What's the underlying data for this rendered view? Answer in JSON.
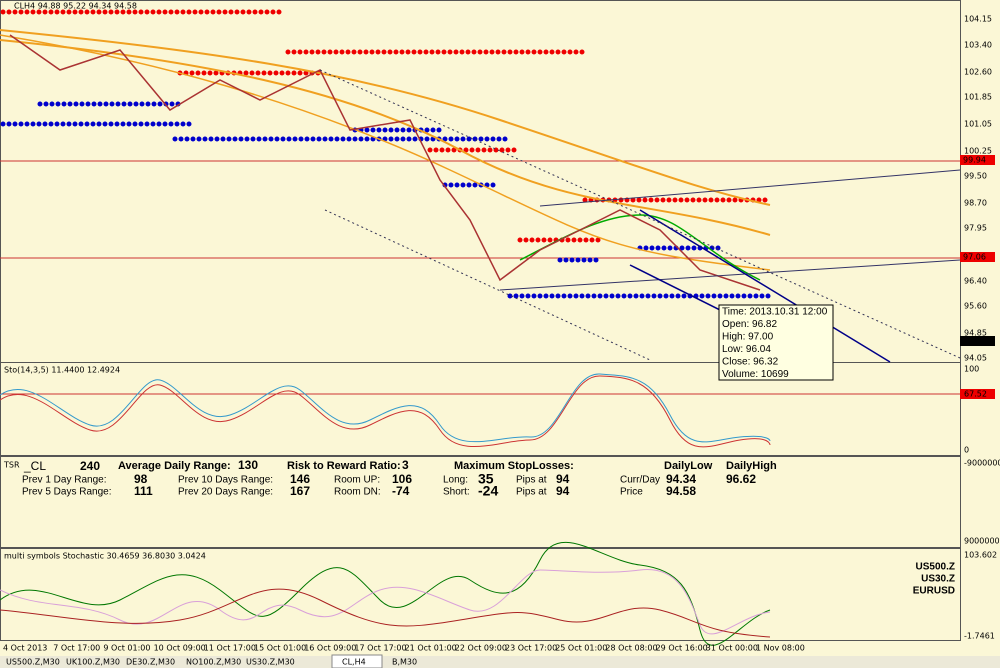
{
  "window": {
    "title": "CLH4  94.88 95.22 94.34 94.58"
  },
  "price_axis": {
    "labels": [
      "104.15",
      "103.40",
      "102.60",
      "101.85",
      "101.05",
      "100.25",
      "99.50",
      "98.70",
      "97.95",
      "96.40",
      "95.60",
      "94.85",
      "94.05"
    ],
    "markers": [
      "99.94",
      "97.06",
      "94.58"
    ]
  },
  "tooltip": [
    "Time: 2013.10.31 12:00",
    "Open: 96.82",
    "High: 97.00",
    "Low:  96.04",
    "Close: 96.32",
    "Volume: 10699"
  ],
  "stochastic": {
    "title": "Sto(14,3,5) 11.4400 12.4924",
    "axis": [
      "100",
      "67.52",
      "0"
    ]
  },
  "tsr": {
    "title": "TSR",
    "symbol": "_CL",
    "period": "240",
    "adr_label": "Average Daily Range:",
    "adr": "130",
    "rr_label": "Risk to Reward Ratio:",
    "rr": "3",
    "msl_label": "Maximum StopLosses:",
    "daily_low": "DailyLow",
    "daily_high": "DailyHigh",
    "row1": [
      "Prev 1 Day Range:",
      "98",
      "Prev 10 Days Range:",
      "146",
      "Room UP:",
      "106",
      "Long:",
      "35",
      "Pips at",
      "94",
      "Curr/Day",
      "94.34",
      "96.62"
    ],
    "row2": [
      "Prev 5 Days Range:",
      "111",
      "Prev 20 Days Range:",
      "167",
      "Room DN:",
      "-74",
      "Short:",
      "-24",
      "Pips at",
      "94",
      "Price",
      "94.58"
    ],
    "axis": [
      "-9000000",
      "9000000"
    ]
  },
  "multi": {
    "title": "multi symbols Stochastic 30.4659 36.8030 3.0424",
    "legend": [
      "US500.Z",
      "US30.Z",
      "EURUSD"
    ],
    "axis": [
      "103.602",
      "-1.7461"
    ]
  },
  "time_axis": [
    "4 Oct 2013",
    "7 Oct 17:00",
    "9 Oct 01:00",
    "10 Oct 09:00",
    "11 Oct 17:00",
    "15 Oct 01:00",
    "16 Oct 09:00",
    "17 Oct 17:00",
    "21 Oct 01:00",
    "22 Oct 09:00",
    "23 Oct 17:00",
    "25 Oct 01:00",
    "28 Oct 08:00",
    "29 Oct 16:00",
    "31 Oct 00:00",
    "1 Nov 08:00"
  ],
  "tabs": [
    "US500.Z,M30",
    "UK100.Z,M30",
    "DE30.Z,M30",
    "NO100.Z,M30",
    "US30.Z,M30",
    "CL,H4",
    "B,M30"
  ]
}
